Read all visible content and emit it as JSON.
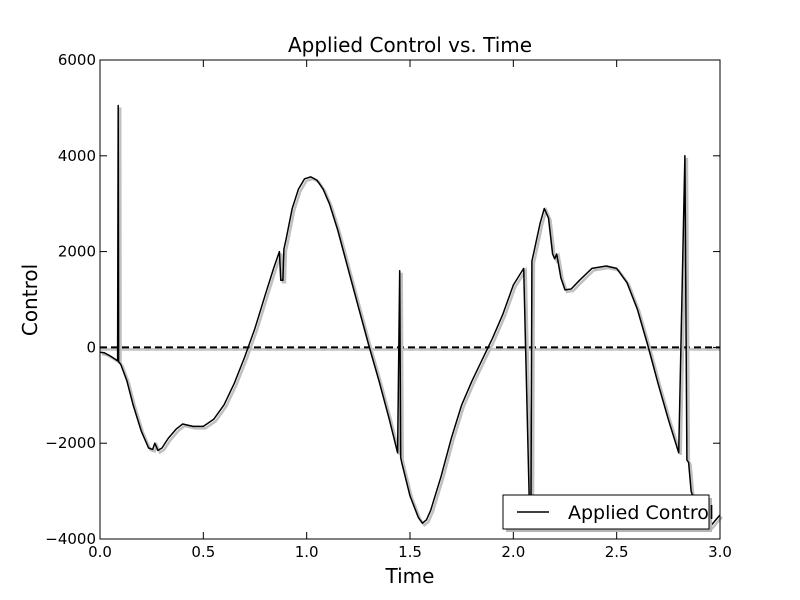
{
  "chart_data": {
    "type": "line",
    "title": "Applied Control vs. Time",
    "xlabel": "Time",
    "ylabel": "Control",
    "xlim": [
      0.0,
      3.0
    ],
    "ylim": [
      -4000,
      6000
    ],
    "xticks": [
      0.0,
      0.5,
      1.0,
      1.5,
      2.0,
      2.5,
      3.0
    ],
    "xtick_labels": [
      "0.0",
      "0.5",
      "1.0",
      "1.5",
      "2.0",
      "2.5",
      "3.0"
    ],
    "yticks": [
      -4000,
      -2000,
      0,
      2000,
      4000,
      6000
    ],
    "ytick_labels": [
      "−4000",
      "−2000",
      "0",
      "2000",
      "4000",
      "6000"
    ],
    "grid": false,
    "legend_position": "lower-right",
    "reference_line": {
      "y": 0,
      "style": "dashed",
      "color": "#000000"
    },
    "series": [
      {
        "name": "Applied Control",
        "color": "#000000",
        "x": [
          0.0,
          0.02,
          0.05,
          0.085,
          0.088,
          0.09,
          0.1,
          0.13,
          0.16,
          0.2,
          0.235,
          0.255,
          0.265,
          0.28,
          0.3,
          0.33,
          0.37,
          0.4,
          0.45,
          0.5,
          0.55,
          0.6,
          0.65,
          0.7,
          0.75,
          0.8,
          0.84,
          0.868,
          0.875,
          0.885,
          0.89,
          0.9,
          0.93,
          0.96,
          0.99,
          1.02,
          1.05,
          1.08,
          1.11,
          1.15,
          1.2,
          1.25,
          1.3,
          1.35,
          1.4,
          1.44,
          1.45,
          1.455,
          1.46,
          1.5,
          1.54,
          1.56,
          1.58,
          1.6,
          1.65,
          1.7,
          1.75,
          1.8,
          1.85,
          1.9,
          1.95,
          2.0,
          2.05,
          2.08,
          2.085,
          2.09,
          2.1,
          2.13,
          2.15,
          2.17,
          2.19,
          2.2,
          2.21,
          2.23,
          2.25,
          2.28,
          2.32,
          2.38,
          2.45,
          2.5,
          2.55,
          2.6,
          2.65,
          2.7,
          2.75,
          2.8,
          2.83,
          2.84,
          2.848,
          2.86,
          2.9,
          2.95,
          3.0
        ],
        "values": [
          -100,
          -110,
          -180,
          -280,
          5050,
          -300,
          -350,
          -700,
          -1200,
          -1750,
          -2100,
          -2130,
          -2000,
          -2150,
          -2100,
          -1900,
          -1700,
          -1600,
          -1650,
          -1650,
          -1500,
          -1200,
          -750,
          -200,
          400,
          1100,
          1650,
          2000,
          1400,
          1400,
          2050,
          2250,
          2900,
          3300,
          3520,
          3560,
          3490,
          3300,
          3000,
          2450,
          1650,
          850,
          50,
          -700,
          -1500,
          -2200,
          1600,
          -2300,
          -2400,
          -3100,
          -3550,
          -3670,
          -3600,
          -3400,
          -2700,
          -1900,
          -1200,
          -700,
          -250,
          200,
          700,
          1300,
          1650,
          -3750,
          -3750,
          1800,
          2000,
          2600,
          2900,
          2700,
          1950,
          1850,
          1950,
          1450,
          1200,
          1220,
          1400,
          1650,
          1700,
          1650,
          1350,
          800,
          50,
          -750,
          -1500,
          -2200,
          4000,
          -2350,
          -2400,
          -3000,
          -3500,
          -3750,
          -3500
        ]
      }
    ]
  }
}
